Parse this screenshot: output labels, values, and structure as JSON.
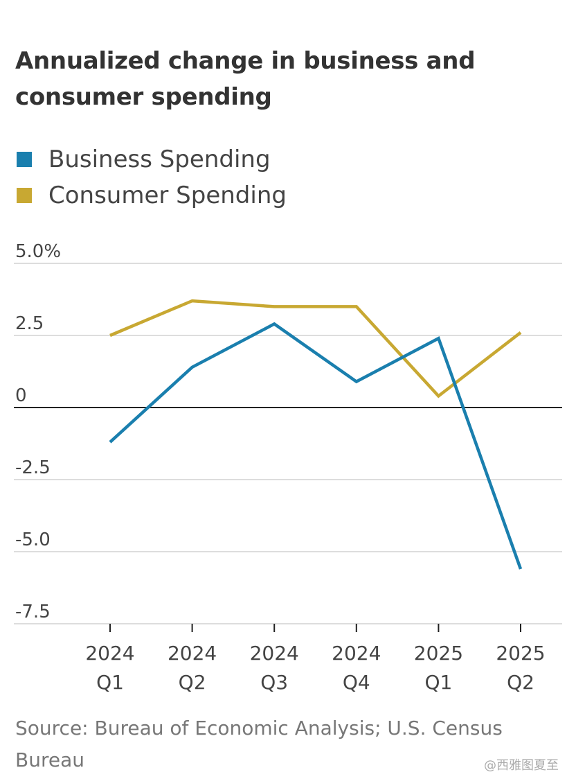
{
  "title": "Annualized change in business and consumer spending",
  "source": "Source: Bureau of Economic Analysis; U.S. Census Bureau",
  "watermark": "@西雅图夏至",
  "colors": {
    "business": "#1a7fae",
    "consumer": "#c8a832",
    "grid": "#dddddd",
    "zero_line": "#222222",
    "text": "#333333"
  },
  "chart_data": {
    "type": "line",
    "title": "Annualized change in business and consumer spending",
    "x_tick_labels": [
      [
        "2024",
        "Q1"
      ],
      [
        "2024",
        "Q2"
      ],
      [
        "2024",
        "Q3"
      ],
      [
        "2024",
        "Q4"
      ],
      [
        "2025",
        "Q1"
      ],
      [
        "2025",
        "Q2"
      ]
    ],
    "categories": [
      "2024 Q1",
      "2024 Q2",
      "2024 Q3",
      "2024 Q4",
      "2025 Q1",
      "2025 Q2"
    ],
    "series": [
      {
        "name": "Business Spending",
        "color": "#1a7fae",
        "values": [
          -1.2,
          1.4,
          2.9,
          0.9,
          2.4,
          -5.6
        ]
      },
      {
        "name": "Consumer Spending",
        "color": "#c8a832",
        "values": [
          2.5,
          3.7,
          3.5,
          3.5,
          0.4,
          2.6
        ]
      }
    ],
    "y_ticks": [
      5.0,
      2.5,
      0,
      -2.5,
      -5.0,
      -7.5
    ],
    "y_tick_labels": [
      "5.0%",
      "2.5",
      "0",
      "-2.5",
      "-5.0",
      "-7.5"
    ],
    "ylim": [
      -7.5,
      5.0
    ],
    "xlabel": "",
    "ylabel": "",
    "grid": true,
    "legend_position": "top-left"
  }
}
